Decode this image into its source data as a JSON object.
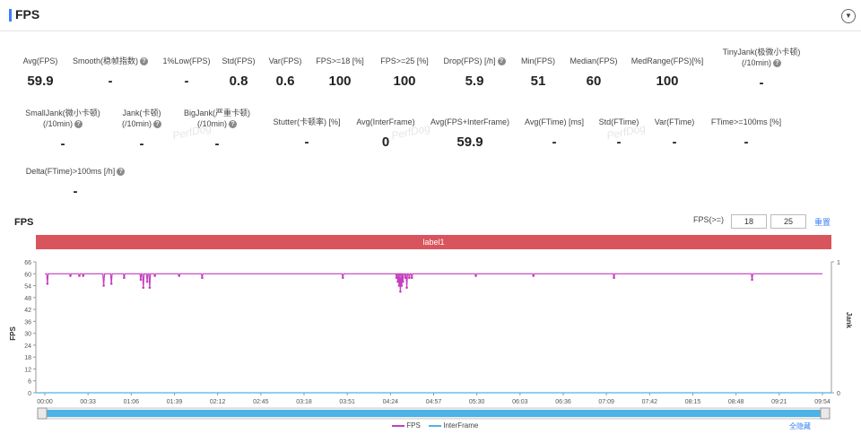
{
  "header": {
    "title": "FPS",
    "collapse_icon": "chevron-down-icon"
  },
  "metrics": [
    {
      "label": "Avg(FPS)",
      "value": "59.9",
      "help": false
    },
    {
      "label": "Smooth(稳帧指数)",
      "value": "-",
      "help": true
    },
    {
      "label": "1%Low(FPS)",
      "value": "-",
      "help": false
    },
    {
      "label": "Std(FPS)",
      "value": "0.8",
      "help": false
    },
    {
      "label": "Var(FPS)",
      "value": "0.6",
      "help": false
    },
    {
      "label": "FPS>=18 [%]",
      "value": "100",
      "help": false
    },
    {
      "label": "FPS>=25 [%]",
      "value": "100",
      "help": false
    },
    {
      "label": "Drop(FPS) [/h]",
      "value": "5.9",
      "help": true
    },
    {
      "label": "Min(FPS)",
      "value": "51",
      "help": false
    },
    {
      "label": "Median(FPS)",
      "value": "60",
      "help": false
    },
    {
      "label": "MedRange(FPS)[%]",
      "value": "100",
      "help": false
    },
    {
      "label": "TinyJank(极微小卡顿)",
      "label2": "(/10min)",
      "value": "-",
      "help": true
    },
    {
      "label": "SmallJank(微小卡顿)",
      "label2": "(/10min)",
      "value": "-",
      "help": true
    },
    {
      "label": "Jank(卡顿)",
      "label2": "(/10min)",
      "value": "-",
      "help": true
    },
    {
      "label": "BigJank(严重卡顿)",
      "label2": "(/10min)",
      "value": "-",
      "help": true
    },
    {
      "label": "Stutter(卡顿率) [%]",
      "value": "-",
      "help": false
    },
    {
      "label": "Avg(InterFrame)",
      "value": "0",
      "help": false
    },
    {
      "label": "Avg(FPS+InterFrame)",
      "value": "59.9",
      "help": false
    },
    {
      "label": "Avg(FTime) [ms]",
      "value": "-",
      "help": false
    },
    {
      "label": "Std(FTime)",
      "value": "-",
      "help": false
    },
    {
      "label": "Var(FTime)",
      "value": "-",
      "help": false
    },
    {
      "label": "FTime>=100ms [%]",
      "value": "-",
      "help": false
    },
    {
      "label": "Delta(FTime)>100ms [/h]",
      "value": "-",
      "help": true
    }
  ],
  "watermark": "PerfDog",
  "chart": {
    "title": "FPS",
    "filter_label": "FPS(>=)",
    "filter_values": [
      "18",
      "25"
    ],
    "reset_label": "重置",
    "label_bar": "label1",
    "hide_all_label": "全隐藏",
    "colors": {
      "fps": "#c43fbf",
      "interframe": "#4db3e6",
      "label_bar": "#d9555e",
      "accent": "#3b82f6"
    }
  },
  "chart_data": {
    "type": "line",
    "ylabel": "FPS",
    "y2label": "Jank",
    "ylim": [
      0,
      66
    ],
    "yticks": [
      0,
      6,
      12,
      18,
      24,
      30,
      36,
      42,
      48,
      54,
      60,
      66
    ],
    "y2lim": [
      0,
      1
    ],
    "y2ticks": [
      0,
      1
    ],
    "x_ticks": [
      "00:00",
      "00:33",
      "01:06",
      "01:39",
      "02:12",
      "02:45",
      "03:18",
      "03:51",
      "04:24",
      "04:57",
      "05:30",
      "06:03",
      "06:36",
      "07:09",
      "07:42",
      "08:15",
      "08:48",
      "09:21",
      "09:54"
    ],
    "xlim_seconds": [
      0,
      608
    ],
    "series": [
      {
        "name": "FPS",
        "baseline": 60,
        "dips": [
          [
            2,
            55
          ],
          [
            20,
            59
          ],
          [
            27,
            59
          ],
          [
            30,
            59
          ],
          [
            46,
            54
          ],
          [
            52,
            55
          ],
          [
            62,
            58
          ],
          [
            75,
            57
          ],
          [
            77,
            53
          ],
          [
            80,
            56
          ],
          [
            82,
            53
          ],
          [
            86,
            59
          ],
          [
            105,
            59
          ],
          [
            123,
            58
          ],
          [
            233,
            58
          ],
          [
            275,
            58
          ],
          [
            276,
            56
          ],
          [
            277,
            54
          ],
          [
            278,
            51
          ],
          [
            279,
            54
          ],
          [
            280,
            56
          ],
          [
            282,
            58
          ],
          [
            283,
            53
          ],
          [
            285,
            58
          ],
          [
            287,
            58
          ],
          [
            337,
            59
          ],
          [
            382,
            59
          ],
          [
            445,
            58
          ],
          [
            553,
            57
          ]
        ]
      },
      {
        "name": "InterFrame",
        "values": [
          0
        ]
      }
    ]
  }
}
